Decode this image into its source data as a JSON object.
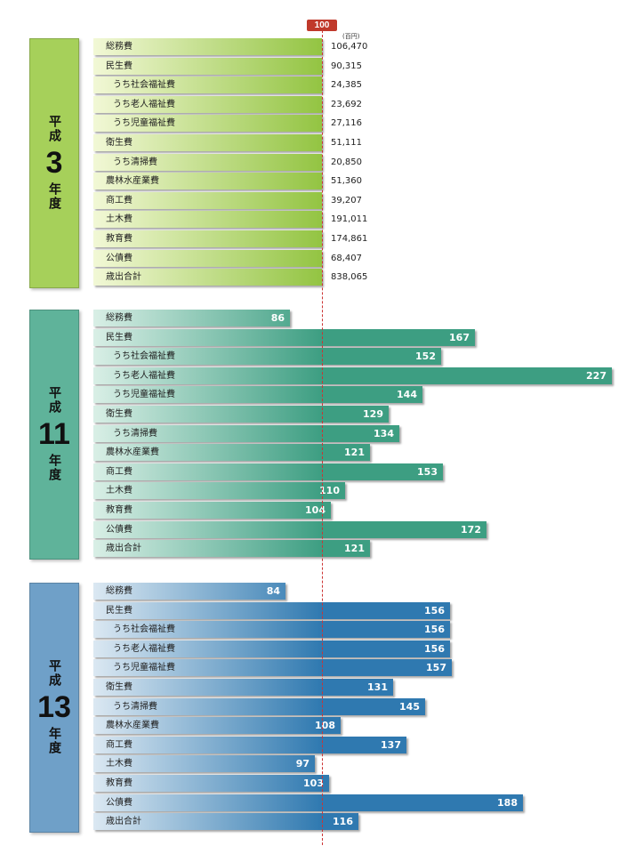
{
  "reference": {
    "label": "100"
  },
  "unit": "(百円)",
  "chart_data": [
    {
      "type": "bar",
      "era": "平成",
      "year": "3",
      "nendo": "年度",
      "value_style": "absolute",
      "colors": {
        "light": "#f2f8d6",
        "dark": "#93c442",
        "box": "#a6d05a"
      },
      "categories": [
        "総務費",
        "民生費",
        "うち社会福祉費",
        "うち老人福祉費",
        "うち児童福祉費",
        "衛生費",
        "うち清掃費",
        "農林水産業費",
        "商工費",
        "土木費",
        "教育費",
        "公債費",
        "歳出合計"
      ],
      "indent": [
        false,
        false,
        true,
        true,
        true,
        false,
        true,
        false,
        false,
        false,
        false,
        false,
        false
      ],
      "value_labels": [
        "106,470",
        "90,315",
        "24,385",
        "23,692",
        "27,116",
        "51,111",
        "20,850",
        "51,360",
        "39,207",
        "191,011",
        "174,861",
        "68,407",
        "838,065"
      ],
      "values": [
        100,
        100,
        100,
        100,
        100,
        100,
        100,
        100,
        100,
        100,
        100,
        100,
        100
      ]
    },
    {
      "type": "bar",
      "era": "平成",
      "year": "11",
      "nendo": "年度",
      "value_style": "index",
      "colors": {
        "light": "#d9efe6",
        "dark": "#3d9e82",
        "box": "#5fb39a"
      },
      "categories": [
        "総務費",
        "民生費",
        "うち社会福祉費",
        "うち老人福祉費",
        "うち児童福祉費",
        "衛生費",
        "うち清掃費",
        "農林水産業費",
        "商工費",
        "土木費",
        "教育費",
        "公債費",
        "歳出合計"
      ],
      "indent": [
        false,
        false,
        true,
        true,
        true,
        false,
        true,
        false,
        false,
        false,
        false,
        false,
        false
      ],
      "values": [
        86,
        167,
        152,
        227,
        144,
        129,
        134,
        121,
        153,
        110,
        104,
        172,
        121
      ]
    },
    {
      "type": "bar",
      "era": "平成",
      "year": "13",
      "nendo": "年度",
      "value_style": "index",
      "colors": {
        "light": "#dbe8f2",
        "dark": "#2f79b0",
        "box": "#6fa0c8"
      },
      "categories": [
        "総務費",
        "民生費",
        "うち社会福祉費",
        "うち老人福祉費",
        "うち児童福祉費",
        "衛生費",
        "うち清掃費",
        "農林水産業費",
        "商工費",
        "土木費",
        "教育費",
        "公債費",
        "歳出合計"
      ],
      "indent": [
        false,
        false,
        true,
        true,
        true,
        false,
        true,
        false,
        false,
        false,
        false,
        false,
        false
      ],
      "values": [
        84,
        156,
        156,
        156,
        157,
        131,
        145,
        108,
        137,
        97,
        103,
        188,
        116
      ]
    }
  ]
}
